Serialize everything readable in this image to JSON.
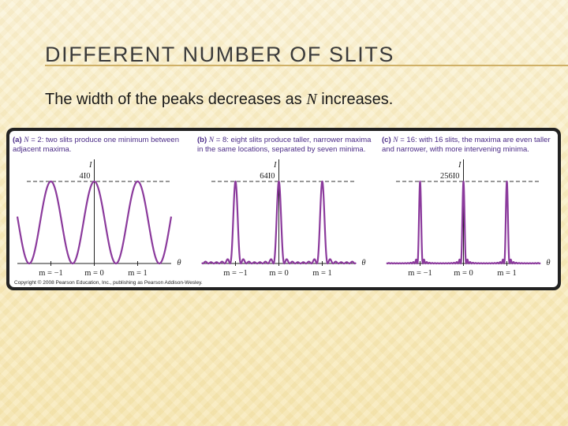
{
  "slide": {
    "title": "DIFFERENT NUMBER OF SLITS",
    "subtitle_before": "The width of the peaks decreases as ",
    "subtitle_symbol": "N",
    "subtitle_after": " increases."
  },
  "figure": {
    "copyright": "Copyright © 2008 Pearson Education, Inc., publishing as Pearson Addison-Wesley.",
    "curve_color": "#8b3a9c",
    "caption_color": "#4a2b86",
    "panels": [
      {
        "tag": "(a)",
        "n_symbol": "N",
        "n_value": "= 2:",
        "caption_rest": "two slits produce one minimum between adjacent maxima.",
        "n_slits": 2,
        "y_label": "I",
        "peak_label": "4I0",
        "x_label": "θ",
        "order_labels": [
          "m = −1",
          "m = 0",
          "m = 1"
        ]
      },
      {
        "tag": "(b)",
        "n_symbol": "N",
        "n_value": "= 8:",
        "caption_rest": "eight slits produce taller, narrower maxima in the same locations, separated by seven minima.",
        "n_slits": 8,
        "y_label": "I",
        "peak_label": "64I0",
        "x_label": "θ",
        "order_labels": [
          "m = −1",
          "m = 0",
          "m = 1"
        ]
      },
      {
        "tag": "(c)",
        "n_symbol": "N",
        "n_value": "= 16:",
        "caption_rest": "with 16 slits, the maxima are even taller and narrower, with more intervening minima.",
        "n_slits": 16,
        "y_label": "I",
        "peak_label": "256I0",
        "x_label": "θ",
        "order_labels": [
          "m = −1",
          "m = 0",
          "m = 1"
        ]
      }
    ]
  }
}
